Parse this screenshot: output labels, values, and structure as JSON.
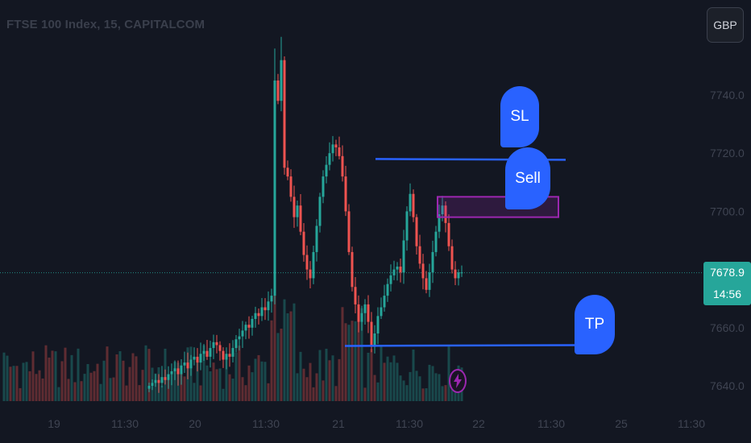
{
  "header": {
    "title": "FTSE 100 Index, 15, CAPITALCOM"
  },
  "toolbar": {
    "currency": "GBP"
  },
  "price_tag": {
    "price": "7678.9",
    "countdown": "14:56"
  },
  "annotations": {
    "sl": "SL",
    "sell": "Sell",
    "tp": "TP"
  },
  "icons": {
    "alert": "lightning-bolt-icon"
  },
  "colors": {
    "background": "#131722",
    "up": "#26a69a",
    "down": "#ef5350",
    "annotation": "#2962ff",
    "zone": "#9c27b0"
  },
  "chart_data": {
    "type": "candlestick",
    "title": "FTSE 100 Index, 15, CAPITALCOM",
    "ylim": [
      7636,
      7760
    ],
    "y_ticks": [
      7640.0,
      7660.0,
      7680.0,
      7700.0,
      7720.0,
      7740.0
    ],
    "x_ticks": [
      "19",
      "11:30",
      "20",
      "11:30",
      "21",
      "11:30",
      "22",
      "11:30",
      "25",
      "11:30"
    ],
    "last_price": 7678.9,
    "levels": [
      {
        "name": "SL",
        "price": 7718
      },
      {
        "name": "TP",
        "price": 7654
      }
    ],
    "sell_zone": {
      "low": 7698,
      "high": 7705
    },
    "series": [
      {
        "name": "price",
        "close": [
          7640,
          7641,
          7642,
          7641,
          7643,
          7642,
          7644,
          7645,
          7646,
          7644,
          7647,
          7648,
          7646,
          7649,
          7650,
          7648,
          7651,
          7652,
          7650,
          7653,
          7655,
          7654,
          7652,
          7649,
          7651,
          7650,
          7653,
          7656,
          7657,
          7659,
          7661,
          7660,
          7663,
          7665,
          7664,
          7667,
          7666,
          7669,
          7671,
          7745,
          7738,
          7752,
          7715,
          7712,
          7705,
          7698,
          7702,
          7693,
          7685,
          7680,
          7677,
          7686,
          7695,
          7705,
          7712,
          7716,
          7720,
          7723,
          7722,
          7719,
          7712,
          7700,
          7686,
          7674,
          7668,
          7662,
          7665,
          7668,
          7662,
          7654,
          7658,
          7664,
          7667,
          7671,
          7675,
          7678,
          7680,
          7681,
          7679,
          7690,
          7700,
          7706,
          7698,
          7688,
          7682,
          7677,
          7673,
          7679,
          7686,
          7693,
          7699,
          7702,
          7696,
          7688,
          7680,
          7677,
          7679,
          7679
        ]
      }
    ]
  }
}
